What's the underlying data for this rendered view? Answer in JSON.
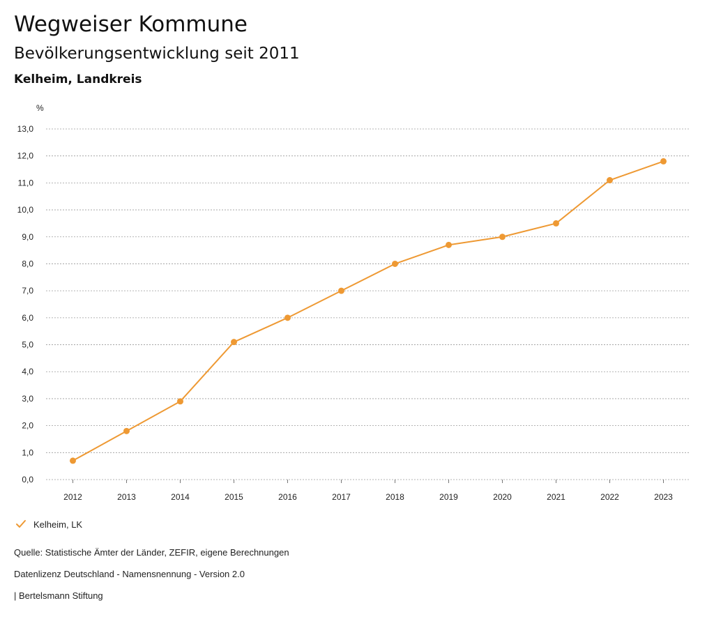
{
  "header": {
    "title": "Wegweiser Kommune",
    "subtitle": "Bevölkerungsentwicklung seit 2011",
    "region": "Kelheim, Landkreis"
  },
  "legend": {
    "label": "Kelheim, LK",
    "color": "#EE9933"
  },
  "footer": {
    "source": "Quelle: Statistische Ämter der Länder, ZEFIR, eigene Berechnungen",
    "license": "Datenlizenz Deutschland - Namensnennung - Version 2.0",
    "brand": "| Bertelsmann Stiftung"
  },
  "chart_data": {
    "type": "line",
    "title": "Bevölkerungsentwicklung seit 2011",
    "xlabel": "",
    "ylabel": "%",
    "categories": [
      "2012",
      "2013",
      "2014",
      "2015",
      "2016",
      "2017",
      "2018",
      "2019",
      "2020",
      "2021",
      "2022",
      "2023"
    ],
    "series": [
      {
        "name": "Kelheim, LK",
        "color": "#EE9933",
        "values": [
          0.7,
          1.8,
          2.9,
          5.1,
          6.0,
          7.0,
          8.0,
          8.7,
          9.0,
          9.5,
          11.1,
          11.8
        ]
      }
    ],
    "ylim": [
      0,
      13
    ],
    "yticks": [
      "0,0",
      "1,0",
      "2,0",
      "3,0",
      "4,0",
      "5,0",
      "6,0",
      "7,0",
      "8,0",
      "9,0",
      "10,0",
      "11,0",
      "12,0",
      "13,0"
    ],
    "grid": true,
    "legend_position": "bottom-left"
  }
}
